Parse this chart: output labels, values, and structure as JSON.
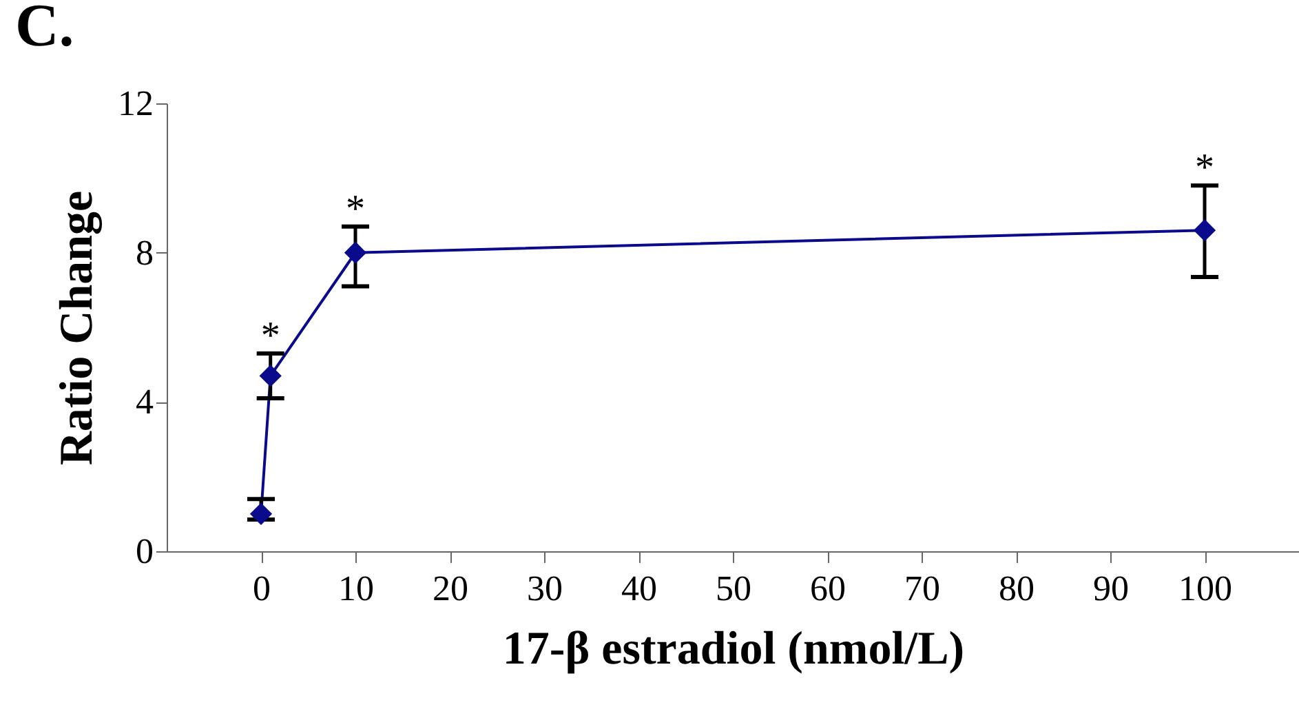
{
  "chart_data": {
    "type": "line",
    "title": "C.",
    "xlabel": "17-β estradiol (nmol/L)",
    "ylabel": "Ratio Change",
    "x": [
      0,
      1,
      10,
      100
    ],
    "series": [
      {
        "color": "#0a0a8c",
        "values": [
          1.0,
          4.7,
          8.0,
          8.6
        ],
        "errors": [
          [
            0.85,
            1.4
          ],
          [
            4.1,
            5.3
          ],
          [
            7.1,
            8.7
          ],
          [
            7.35,
            9.8
          ]
        ]
      }
    ],
    "xlim": [
      -10,
      110
    ],
    "xticks": [
      0,
      10,
      20,
      30,
      40,
      50,
      60,
      70,
      80,
      90,
      100
    ],
    "ylim": [
      0,
      12
    ],
    "yticks": [
      0,
      4,
      8,
      12
    ],
    "annotations": [
      {
        "text": "*",
        "x": 1,
        "y": 5.3
      },
      {
        "text": "*",
        "x": 10,
        "y": 8.7
      },
      {
        "text": "*",
        "x": 100,
        "y": 9.8
      }
    ],
    "grid": false,
    "marker": "diamond",
    "line_style": "solid"
  }
}
